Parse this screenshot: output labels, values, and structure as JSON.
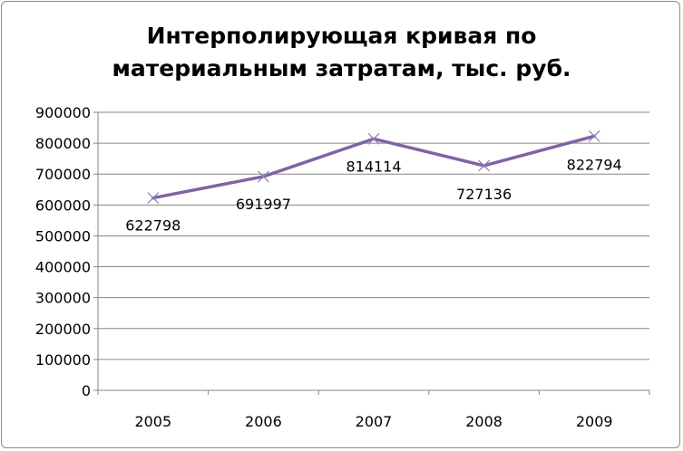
{
  "chart_data": {
    "type": "line",
    "title_lines": [
      "Интерполирующая кривая по",
      "материальным затратам, тыс. руб."
    ],
    "categories": [
      "2005",
      "2006",
      "2007",
      "2008",
      "2009"
    ],
    "series": [
      {
        "values": [
          622798,
          691997,
          814114,
          727136,
          822794
        ],
        "color": "#8064a2",
        "marker": "x"
      }
    ],
    "data_labels": [
      "622798",
      "691997",
      "814114",
      "727136",
      "822794"
    ],
    "y_ticks": [
      "0",
      "100000",
      "200000",
      "300000",
      "400000",
      "500000",
      "600000",
      "700000",
      "800000",
      "900000"
    ],
    "ylim": [
      0,
      900000
    ],
    "grid": true,
    "legend": "none"
  }
}
